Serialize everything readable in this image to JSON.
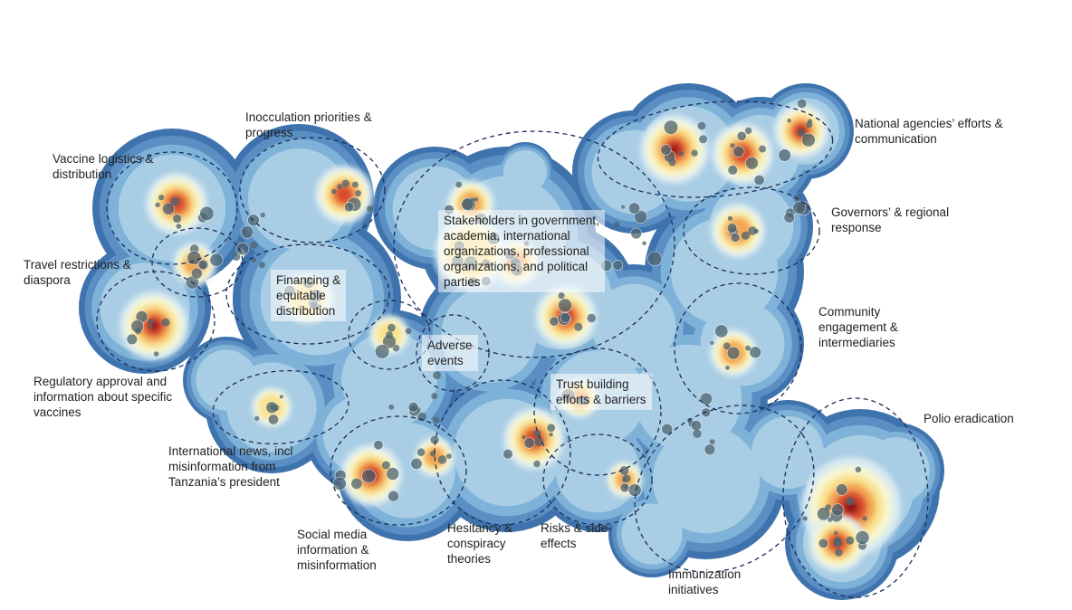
{
  "labels": {
    "vaccine_logistics": "Vaccine logistics &\ndistribution",
    "inocculation": "Inocculation priorities &\nprogress",
    "national_agencies": "National agencies’ efforts &\ncommunication",
    "governors": "Governors’ & regional\nresponse",
    "stakeholders": "Stakeholders in government,\nacademia, international\norganizations, professional\norganizations, and political\nparties",
    "travel": "Travel restrictions &\ndiaspora",
    "financing": "Financing &\nequitable\ndistribution",
    "community": "Community\nengagement &\nintermediaries",
    "adverse": "Adverse\nevents",
    "regulatory": "Regulatory approval and\ninformation about specific\nvaccines",
    "trust": "Trust building\nefforts & barriers",
    "polio": "Polio eradication",
    "international_news": "International news, incl\nmisinformation from\nTanzania’s president",
    "social_media": "Social media\ninformation &\nmisinformation",
    "hesitancy": "Hesitancy &\nconspiracy\ntheories",
    "risks": "Risks & side-\neffects",
    "immunization": "Immunization\ninitiatives"
  },
  "colors": {
    "outer": "#3f73ad",
    "blue": "#7fb2d8",
    "pale": "#dcedf2",
    "cream": "#fbf8cf",
    "yellow": "#f8e08a",
    "orange": "#f2a04e",
    "red": "#d8442a",
    "dark": "#8e0f16",
    "dot": "#4d6470",
    "ring": "#1b2e5a"
  }
}
